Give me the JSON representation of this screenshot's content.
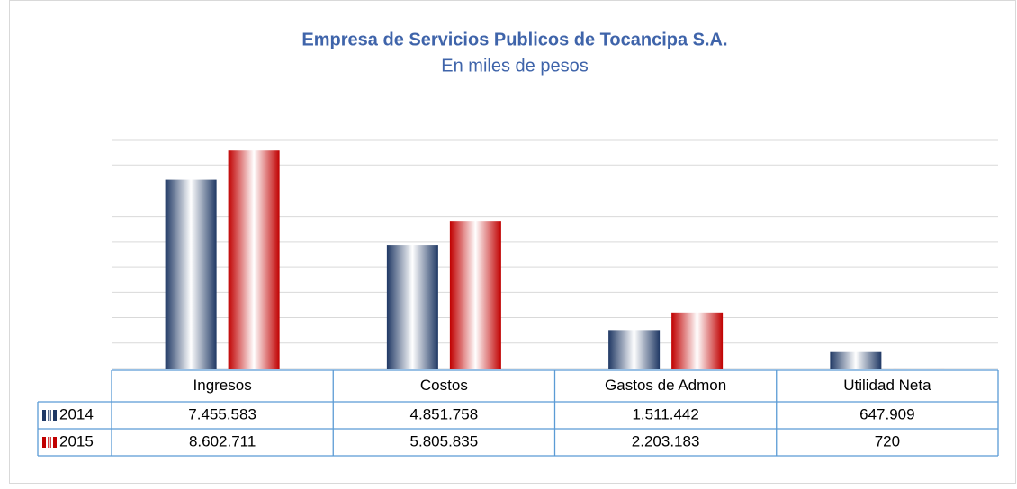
{
  "chart_data": {
    "type": "bar",
    "title": "Empresa de Servicios Publicos de Tocancipa S.A.",
    "subtitle": "En miles de pesos",
    "categories": [
      "Ingresos",
      "Costos",
      "Gastos de Admon",
      "Utilidad Neta"
    ],
    "series": [
      {
        "name": "2014",
        "color": "#1f3864",
        "values": [
          7455583,
          4851758,
          1511442,
          647909
        ],
        "value_labels": [
          "7.455.583",
          "4.851.758",
          "1.511.442",
          "647.909"
        ]
      },
      {
        "name": "2015",
        "color": "#c00000",
        "values": [
          8602711,
          5805835,
          2203183,
          720
        ],
        "value_labels": [
          "8.602.711",
          "5.805.835",
          "2.203.183",
          "720"
        ]
      }
    ],
    "ylim": [
      0,
      9000000
    ],
    "yticks": [
      0,
      1000000,
      2000000,
      3000000,
      4000000,
      5000000,
      6000000,
      7000000,
      8000000,
      9000000
    ],
    "grid": true
  }
}
